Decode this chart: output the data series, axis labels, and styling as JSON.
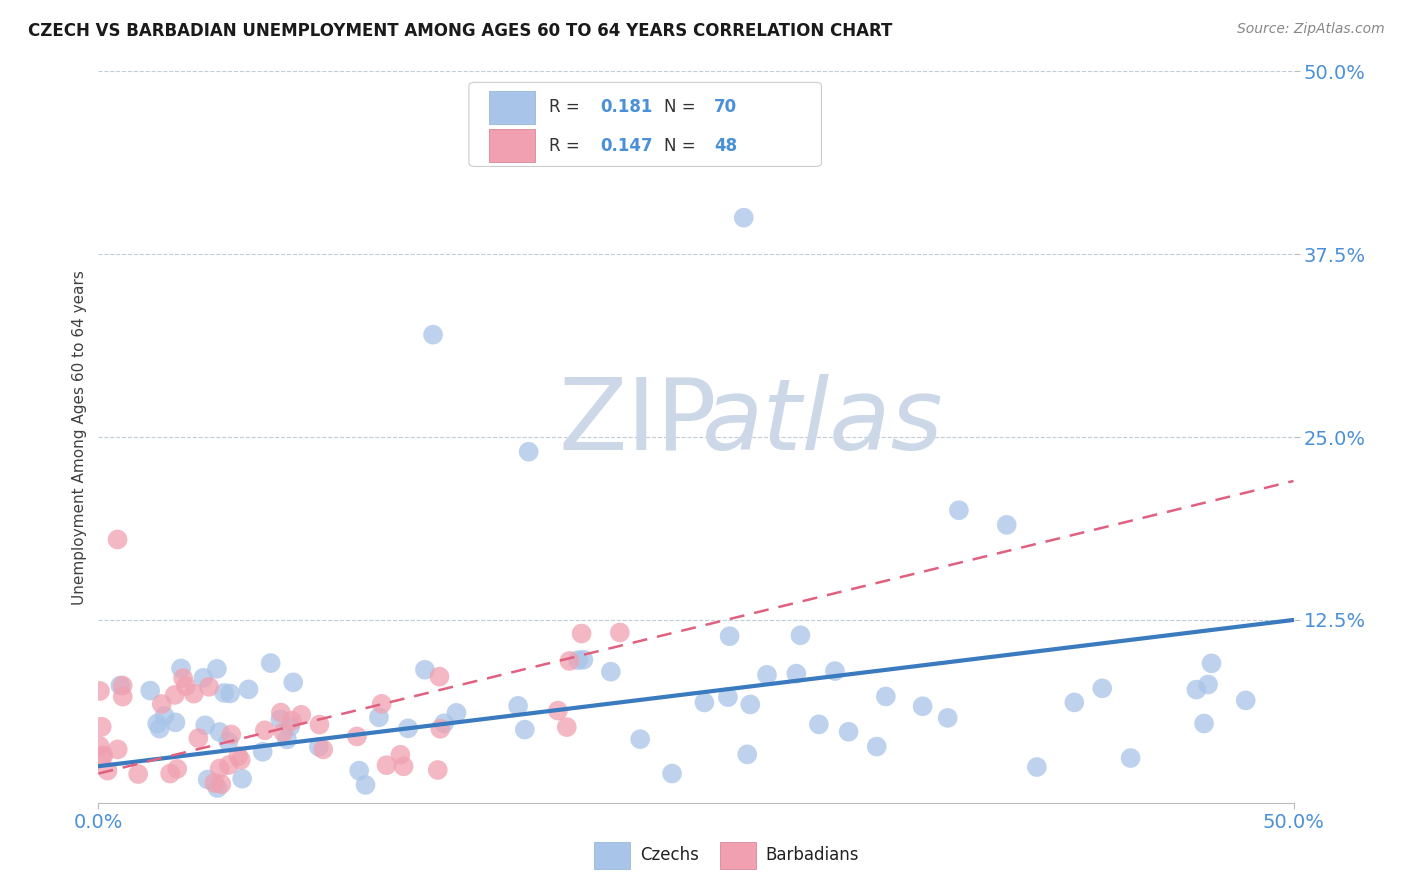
{
  "title": "CZECH VS BARBADIAN UNEMPLOYMENT AMONG AGES 60 TO 64 YEARS CORRELATION CHART",
  "source_text": "Source: ZipAtlas.com",
  "ylabel": "Unemployment Among Ages 60 to 64 years",
  "xticklabels_ends": [
    "0.0%",
    "50.0%"
  ],
  "xticks_ends": [
    0.0,
    0.5
  ],
  "yticklabels": [
    "50.0%",
    "37.5%",
    "25.0%",
    "12.5%"
  ],
  "yticks": [
    0.5,
    0.375,
    0.25,
    0.125
  ],
  "xlim": [
    0.0,
    0.5
  ],
  "ylim": [
    0.0,
    0.5
  ],
  "legend_R_czech": "0.181",
  "legend_N_czech": "70",
  "legend_R_barbadian": "0.147",
  "legend_N_barbadian": "48",
  "czech_color": "#a8c4e8",
  "barbadian_color": "#f0a0b0",
  "trendline_czech_color": "#3a7abf",
  "trendline_barbadian_color": "#e06080",
  "watermark_ZIP": "ZIP",
  "watermark_atlas": "atlas",
  "watermark_color": "#ccd8e8",
  "background_color": "#ffffff",
  "grid_color": "#c0ccd8",
  "title_color": "#1a1a1a",
  "axis_label_color": "#404040",
  "tick_label_color": "#4a90d9",
  "legend_R_color": "#4a90d9",
  "source_color": "#888888"
}
